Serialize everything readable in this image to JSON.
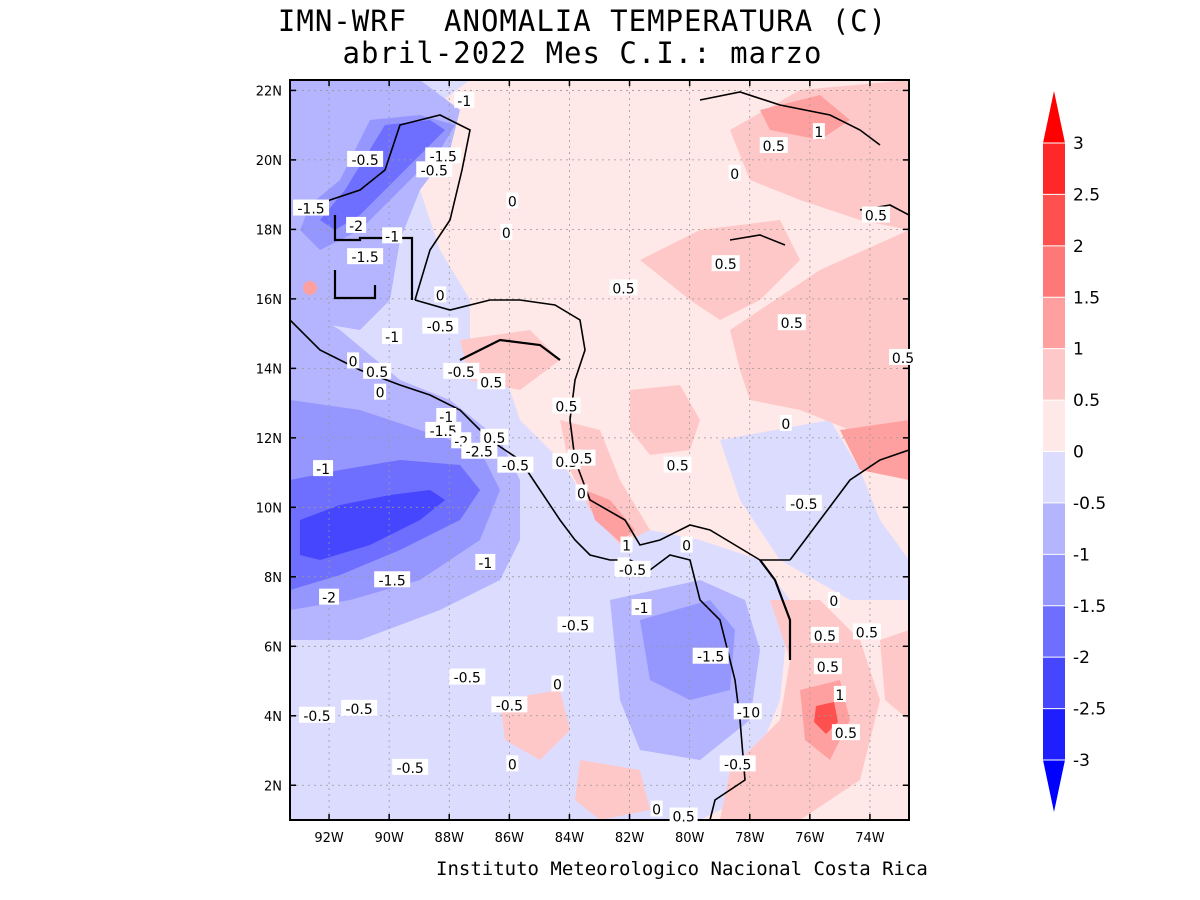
{
  "title_line1": "IMN-WRF  ANOMALIA TEMPERATURA (C)",
  "title_line2": "abril-2022 Mes C.I.: marzo",
  "footer": "Instituto Meteorologico Nacional Costa Rica",
  "map": {
    "lon_range": [
      -93.3,
      -72.7
    ],
    "lat_range": [
      1.0,
      22.3
    ],
    "lon_ticks": [
      "92W",
      "90W",
      "88W",
      "86W",
      "84W",
      "82W",
      "80W",
      "78W",
      "76W",
      "74W"
    ],
    "lat_ticks": [
      "2N",
      "4N",
      "6N",
      "8N",
      "10N",
      "12N",
      "14N",
      "16N",
      "18N",
      "20N",
      "22N"
    ],
    "lon_tick_values": [
      -92,
      -90,
      -88,
      -86,
      -84,
      -82,
      -80,
      -78,
      -76,
      -74
    ],
    "lat_tick_values": [
      2,
      4,
      6,
      8,
      10,
      12,
      14,
      16,
      18,
      20,
      22
    ],
    "gridlines": "dotted",
    "contour_labels": [
      {
        "text": "-1",
        "lon": -87.5,
        "lat": 21.7
      },
      {
        "text": "-1.5",
        "lon": -88.2,
        "lat": 20.1
      },
      {
        "text": "-0.5",
        "lon": -88.5,
        "lat": 19.7
      },
      {
        "text": "-0.5",
        "lon": -90.8,
        "lat": 20.0
      },
      {
        "text": "-1.5",
        "lon": -92.6,
        "lat": 18.6
      },
      {
        "text": "-2",
        "lon": -91.1,
        "lat": 18.1
      },
      {
        "text": "-1",
        "lon": -89.9,
        "lat": 17.8
      },
      {
        "text": "-1.5",
        "lon": -90.8,
        "lat": 17.2
      },
      {
        "text": "0",
        "lon": -86.1,
        "lat": 17.9
      },
      {
        "text": "0",
        "lon": -88.3,
        "lat": 16.1
      },
      {
        "text": "-0.5",
        "lon": -88.3,
        "lat": 15.2
      },
      {
        "text": "-1",
        "lon": -89.9,
        "lat": 14.9
      },
      {
        "text": "0",
        "lon": -91.2,
        "lat": 14.2
      },
      {
        "text": "0.5",
        "lon": -90.4,
        "lat": 13.9
      },
      {
        "text": "-0.5",
        "lon": -87.6,
        "lat": 13.9
      },
      {
        "text": "0.5",
        "lon": -86.6,
        "lat": 13.6
      },
      {
        "text": "0",
        "lon": -90.3,
        "lat": 13.3
      },
      {
        "text": "-1",
        "lon": -88.1,
        "lat": 12.6
      },
      {
        "text": "-1.5",
        "lon": -88.2,
        "lat": 12.2
      },
      {
        "text": "-2",
        "lon": -87.6,
        "lat": 11.9
      },
      {
        "text": "-2.5",
        "lon": -87.0,
        "lat": 11.6
      },
      {
        "text": "0.5",
        "lon": -86.5,
        "lat": 12.0
      },
      {
        "text": "-1",
        "lon": -92.2,
        "lat": 11.1
      },
      {
        "text": "-0.5",
        "lon": -85.8,
        "lat": 11.2
      },
      {
        "text": "0.5",
        "lon": -84.1,
        "lat": 12.9
      },
      {
        "text": "0.5",
        "lon": -84.1,
        "lat": 11.3
      },
      {
        "text": "0",
        "lon": -83.6,
        "lat": 10.4
      },
      {
        "text": "-1.5",
        "lon": -89.9,
        "lat": 7.9
      },
      {
        "text": "-1",
        "lon": -86.8,
        "lat": 8.4
      },
      {
        "text": "-2",
        "lon": -92.0,
        "lat": 7.4
      },
      {
        "text": "0",
        "lon": -82.2,
        "lat": 8.3
      },
      {
        "text": "-0.5",
        "lon": -81.9,
        "lat": 8.2
      },
      {
        "text": "1",
        "lon": -82.1,
        "lat": 8.9
      },
      {
        "text": "0",
        "lon": -80.1,
        "lat": 8.9
      },
      {
        "text": "-1",
        "lon": -81.6,
        "lat": 7.1
      },
      {
        "text": "-0.5",
        "lon": -83.8,
        "lat": 6.6
      },
      {
        "text": "-1.5",
        "lon": -79.3,
        "lat": 5.7
      },
      {
        "text": "-0.5",
        "lon": -87.4,
        "lat": 5.1
      },
      {
        "text": "0",
        "lon": -84.4,
        "lat": 4.9
      },
      {
        "text": "-0.5",
        "lon": -86.0,
        "lat": 4.3
      },
      {
        "text": "-0.5",
        "lon": -92.4,
        "lat": 4.0
      },
      {
        "text": "-0.5",
        "lon": -91.0,
        "lat": 4.2
      },
      {
        "text": "-1",
        "lon": -78.2,
        "lat": 4.1
      },
      {
        "text": "0",
        "lon": -77.8,
        "lat": 4.1
      },
      {
        "text": "-0.5",
        "lon": -89.3,
        "lat": 2.5
      },
      {
        "text": "0",
        "lon": -85.9,
        "lat": 2.6
      },
      {
        "text": "-0.5",
        "lon": -78.4,
        "lat": 2.6
      },
      {
        "text": "0",
        "lon": -81.1,
        "lat": 1.3
      },
      {
        "text": "0.5",
        "lon": -80.2,
        "lat": 1.1
      },
      {
        "text": "0.5",
        "lon": -75.5,
        "lat": 6.3
      },
      {
        "text": "0.5",
        "lon": -75.4,
        "lat": 5.4
      },
      {
        "text": "1",
        "lon": -75.0,
        "lat": 4.6
      },
      {
        "text": "0.5",
        "lon": -74.8,
        "lat": 3.5
      },
      {
        "text": "0.5",
        "lon": -74.1,
        "lat": 6.4
      },
      {
        "text": "0",
        "lon": -75.2,
        "lat": 7.3
      },
      {
        "text": "-0.5",
        "lon": -76.2,
        "lat": 10.1
      },
      {
        "text": "0",
        "lon": -76.8,
        "lat": 12.4
      },
      {
        "text": "0.5",
        "lon": -80.4,
        "lat": 11.2
      },
      {
        "text": "0.5",
        "lon": -83.6,
        "lat": 11.4
      },
      {
        "text": "0.5",
        "lon": -82.2,
        "lat": 16.3
      },
      {
        "text": "0.5",
        "lon": -78.8,
        "lat": 17.0
      },
      {
        "text": "0.5",
        "lon": -76.6,
        "lat": 15.3
      },
      {
        "text": "0.5",
        "lon": -72.9,
        "lat": 14.3
      },
      {
        "text": "0",
        "lon": -85.9,
        "lat": 18.8
      },
      {
        "text": "0.5",
        "lon": -77.2,
        "lat": 20.4
      },
      {
        "text": "1",
        "lon": -75.7,
        "lat": 20.8
      },
      {
        "text": "0",
        "lon": -78.5,
        "lat": 19.6
      },
      {
        "text": "0.5",
        "lon": -73.8,
        "lat": 18.4
      }
    ]
  },
  "colorbar": {
    "levels": [
      "-3",
      "-2.5",
      "-2",
      "-1.5",
      "-1",
      "-0.5",
      "0",
      "0.5",
      "1",
      "1.5",
      "2",
      "2.5",
      "3"
    ],
    "colors": [
      "#1e1eff",
      "#4646ff",
      "#6e6eff",
      "#9696ff",
      "#b4b4ff",
      "#dcdcff",
      "#ffe8e8",
      "#ffc8c8",
      "#ffa0a0",
      "#ff7878",
      "#ff5050",
      "#ff2828"
    ],
    "under_color": "#0000ff",
    "over_color": "#ff0000"
  },
  "colors": {
    "land_warm": "#ffe8e8",
    "frame": "#000000"
  }
}
